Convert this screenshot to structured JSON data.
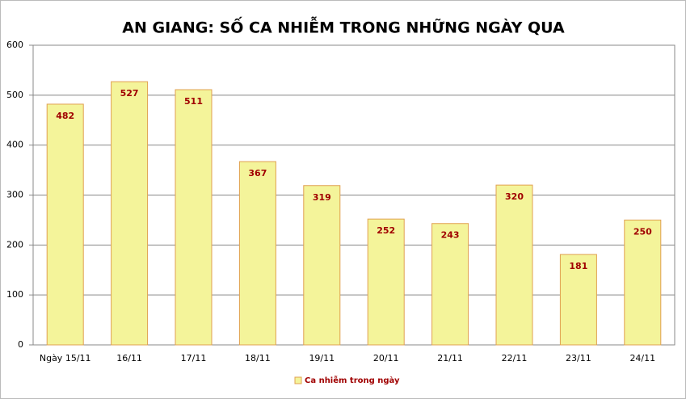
{
  "chart_data": {
    "type": "bar",
    "title": "AN GIANG: SỐ CA NHIỄM TRONG NHỮNG NGÀY QUA",
    "categories": [
      "Ngày 15/11",
      "16/11",
      "17/11",
      "18/11",
      "19/11",
      "20/11",
      "21/11",
      "22/11",
      "23/11",
      "24/11"
    ],
    "series": [
      {
        "name": "Ca nhiễm trong ngày",
        "color": "#f4f49a",
        "values": [
          482,
          527,
          511,
          367,
          319,
          252,
          243,
          320,
          181,
          250
        ]
      }
    ],
    "ylim": [
      0,
      600
    ],
    "yticks": [
      0,
      100,
      200,
      300,
      400,
      500,
      600
    ],
    "grid": true,
    "legend": "bottom"
  }
}
